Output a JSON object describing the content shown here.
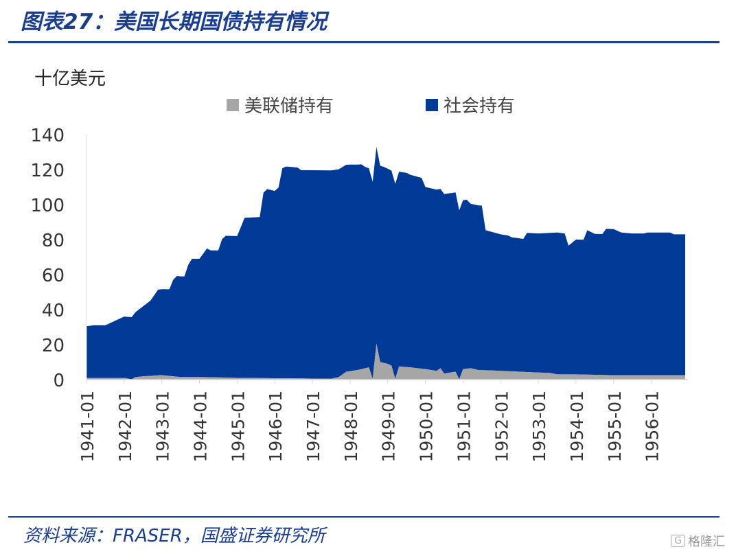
{
  "header": {
    "title": "图表27：美国长期国债持有情况"
  },
  "footer": {
    "source": "资料来源：FRASER，国盛证券研究所"
  },
  "watermark": {
    "icon_text": "G",
    "text": "格隆汇"
  },
  "colors": {
    "accent": "#1a3d8c",
    "fed": "#a6a6a6",
    "public": "#003a96"
  },
  "chart_data": {
    "type": "area",
    "stacked": true,
    "unit_label": "十亿美元",
    "ylim": [
      0,
      140
    ],
    "yticks": [
      0,
      20,
      40,
      60,
      80,
      100,
      120,
      140
    ],
    "x_tick_labels": [
      "1941-01",
      "1942-01",
      "1943-01",
      "1944-01",
      "1945-01",
      "1946-01",
      "1947-01",
      "1948-01",
      "1949-01",
      "1950-01",
      "1951-01",
      "1952-01",
      "1953-01",
      "1954-01",
      "1955-01",
      "1956-01"
    ],
    "x_start": 1941.0,
    "x_end": 1956.9,
    "legend_position": "top",
    "grid": false,
    "series": [
      {
        "name": "美联储持有",
        "color": "#a6a6a6",
        "points": [
          [
            1941.0,
            1.0
          ],
          [
            1941.5,
            1.0
          ],
          [
            1942.0,
            1.0
          ],
          [
            1942.2,
            0.2
          ],
          [
            1942.3,
            1.5
          ],
          [
            1942.6,
            2.0
          ],
          [
            1943.0,
            2.5
          ],
          [
            1943.5,
            1.5
          ],
          [
            1944.0,
            1.5
          ],
          [
            1945.0,
            1.0
          ],
          [
            1946.0,
            0.8
          ],
          [
            1947.0,
            0.6
          ],
          [
            1947.5,
            0.5
          ],
          [
            1947.7,
            1.5
          ],
          [
            1947.9,
            4.5
          ],
          [
            1948.2,
            5.5
          ],
          [
            1948.5,
            7.0
          ],
          [
            1948.6,
            0.5
          ],
          [
            1948.7,
            20.5
          ],
          [
            1948.8,
            10.0
          ],
          [
            1949.0,
            9.0
          ],
          [
            1949.1,
            8.0
          ],
          [
            1949.2,
            0.5
          ],
          [
            1949.3,
            7.5
          ],
          [
            1949.6,
            7.0
          ],
          [
            1950.0,
            6.0
          ],
          [
            1950.3,
            5.0
          ],
          [
            1950.4,
            6.5
          ],
          [
            1950.5,
            3.5
          ],
          [
            1950.8,
            4.5
          ],
          [
            1950.9,
            0.2
          ],
          [
            1951.0,
            6.0
          ],
          [
            1951.2,
            6.5
          ],
          [
            1951.4,
            5.5
          ],
          [
            1952.0,
            5.0
          ],
          [
            1952.5,
            4.5
          ],
          [
            1953.0,
            4.0
          ],
          [
            1953.3,
            3.8
          ],
          [
            1953.5,
            3.0
          ],
          [
            1954.0,
            3.0
          ],
          [
            1955.0,
            2.5
          ],
          [
            1956.0,
            2.5
          ],
          [
            1956.9,
            2.5
          ]
        ]
      },
      {
        "name": "社会持有",
        "color": "#003a96",
        "points": [
          [
            1941.0,
            29.5
          ],
          [
            1941.2,
            30.0
          ],
          [
            1941.5,
            30.0
          ],
          [
            1941.8,
            33.0
          ],
          [
            1942.0,
            35.0
          ],
          [
            1942.2,
            35.5
          ],
          [
            1942.3,
            37.0
          ],
          [
            1942.5,
            40.0
          ],
          [
            1942.7,
            43.0
          ],
          [
            1942.9,
            49.0
          ],
          [
            1943.2,
            49.5
          ],
          [
            1943.3,
            55.0
          ],
          [
            1943.4,
            57.5
          ],
          [
            1943.6,
            57.5
          ],
          [
            1943.7,
            64.0
          ],
          [
            1943.8,
            67.5
          ],
          [
            1944.0,
            67.5
          ],
          [
            1944.2,
            73.5
          ],
          [
            1944.3,
            72.5
          ],
          [
            1944.5,
            72.5
          ],
          [
            1944.6,
            79.0
          ],
          [
            1944.7,
            81.0
          ],
          [
            1945.0,
            81.0
          ],
          [
            1945.2,
            91.5
          ],
          [
            1945.6,
            92.0
          ],
          [
            1945.7,
            106.0
          ],
          [
            1945.8,
            108.0
          ],
          [
            1946.0,
            107.0
          ],
          [
            1946.1,
            109.0
          ],
          [
            1946.2,
            120.0
          ],
          [
            1946.3,
            121.0
          ],
          [
            1946.6,
            120.5
          ],
          [
            1946.7,
            119.0
          ],
          [
            1947.0,
            119.0
          ],
          [
            1947.5,
            119.0
          ],
          [
            1947.8,
            118.5
          ],
          [
            1948.0,
            118.0
          ],
          [
            1948.3,
            117.0
          ],
          [
            1948.4,
            115.0
          ],
          [
            1948.6,
            112.5
          ],
          [
            1948.9,
            112.0
          ],
          [
            1949.0,
            111.5
          ],
          [
            1949.5,
            111.0
          ],
          [
            1949.6,
            110.0
          ],
          [
            1949.9,
            109.0
          ],
          [
            1950.0,
            104.0
          ],
          [
            1950.3,
            103.5
          ],
          [
            1950.4,
            102.5
          ],
          [
            1950.8,
            102.5
          ],
          [
            1950.9,
            96.5
          ],
          [
            1951.1,
            96.5
          ],
          [
            1951.2,
            94.0
          ],
          [
            1951.5,
            94.0
          ],
          [
            1951.6,
            80.0
          ],
          [
            1951.8,
            79.0
          ],
          [
            1952.0,
            78.0
          ],
          [
            1952.2,
            77.5
          ],
          [
            1952.3,
            76.5
          ],
          [
            1952.6,
            76.0
          ],
          [
            1952.7,
            79.5
          ],
          [
            1953.0,
            79.5
          ],
          [
            1953.3,
            80.0
          ],
          [
            1953.5,
            81.0
          ],
          [
            1953.7,
            80.5
          ],
          [
            1953.8,
            73.5
          ],
          [
            1954.0,
            77.0
          ],
          [
            1954.2,
            77.0
          ],
          [
            1954.3,
            82.5
          ],
          [
            1954.5,
            80.5
          ],
          [
            1954.7,
            80.5
          ],
          [
            1954.8,
            83.5
          ],
          [
            1955.0,
            83.5
          ],
          [
            1955.2,
            81.5
          ],
          [
            1955.5,
            81.0
          ],
          [
            1955.8,
            81.0
          ],
          [
            1955.9,
            81.5
          ],
          [
            1956.0,
            81.5
          ],
          [
            1956.5,
            81.5
          ],
          [
            1956.6,
            80.5
          ],
          [
            1956.9,
            80.5
          ]
        ]
      }
    ]
  }
}
